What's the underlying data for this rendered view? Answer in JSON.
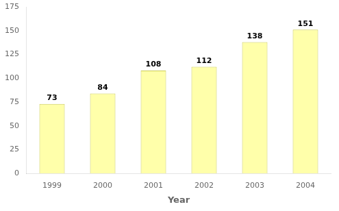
{
  "chart_data": {
    "type": "bar",
    "categories": [
      "1999",
      "2000",
      "2001",
      "2002",
      "2003",
      "2004"
    ],
    "values": [
      73,
      84,
      108,
      112,
      138,
      151
    ],
    "color": "#FFFFAA",
    "xlabel": "Year",
    "ylim": [
      0,
      175
    ],
    "yticks": [
      0,
      25,
      50,
      75,
      100,
      125,
      150,
      175
    ],
    "grid": false,
    "data_labels": true
  }
}
